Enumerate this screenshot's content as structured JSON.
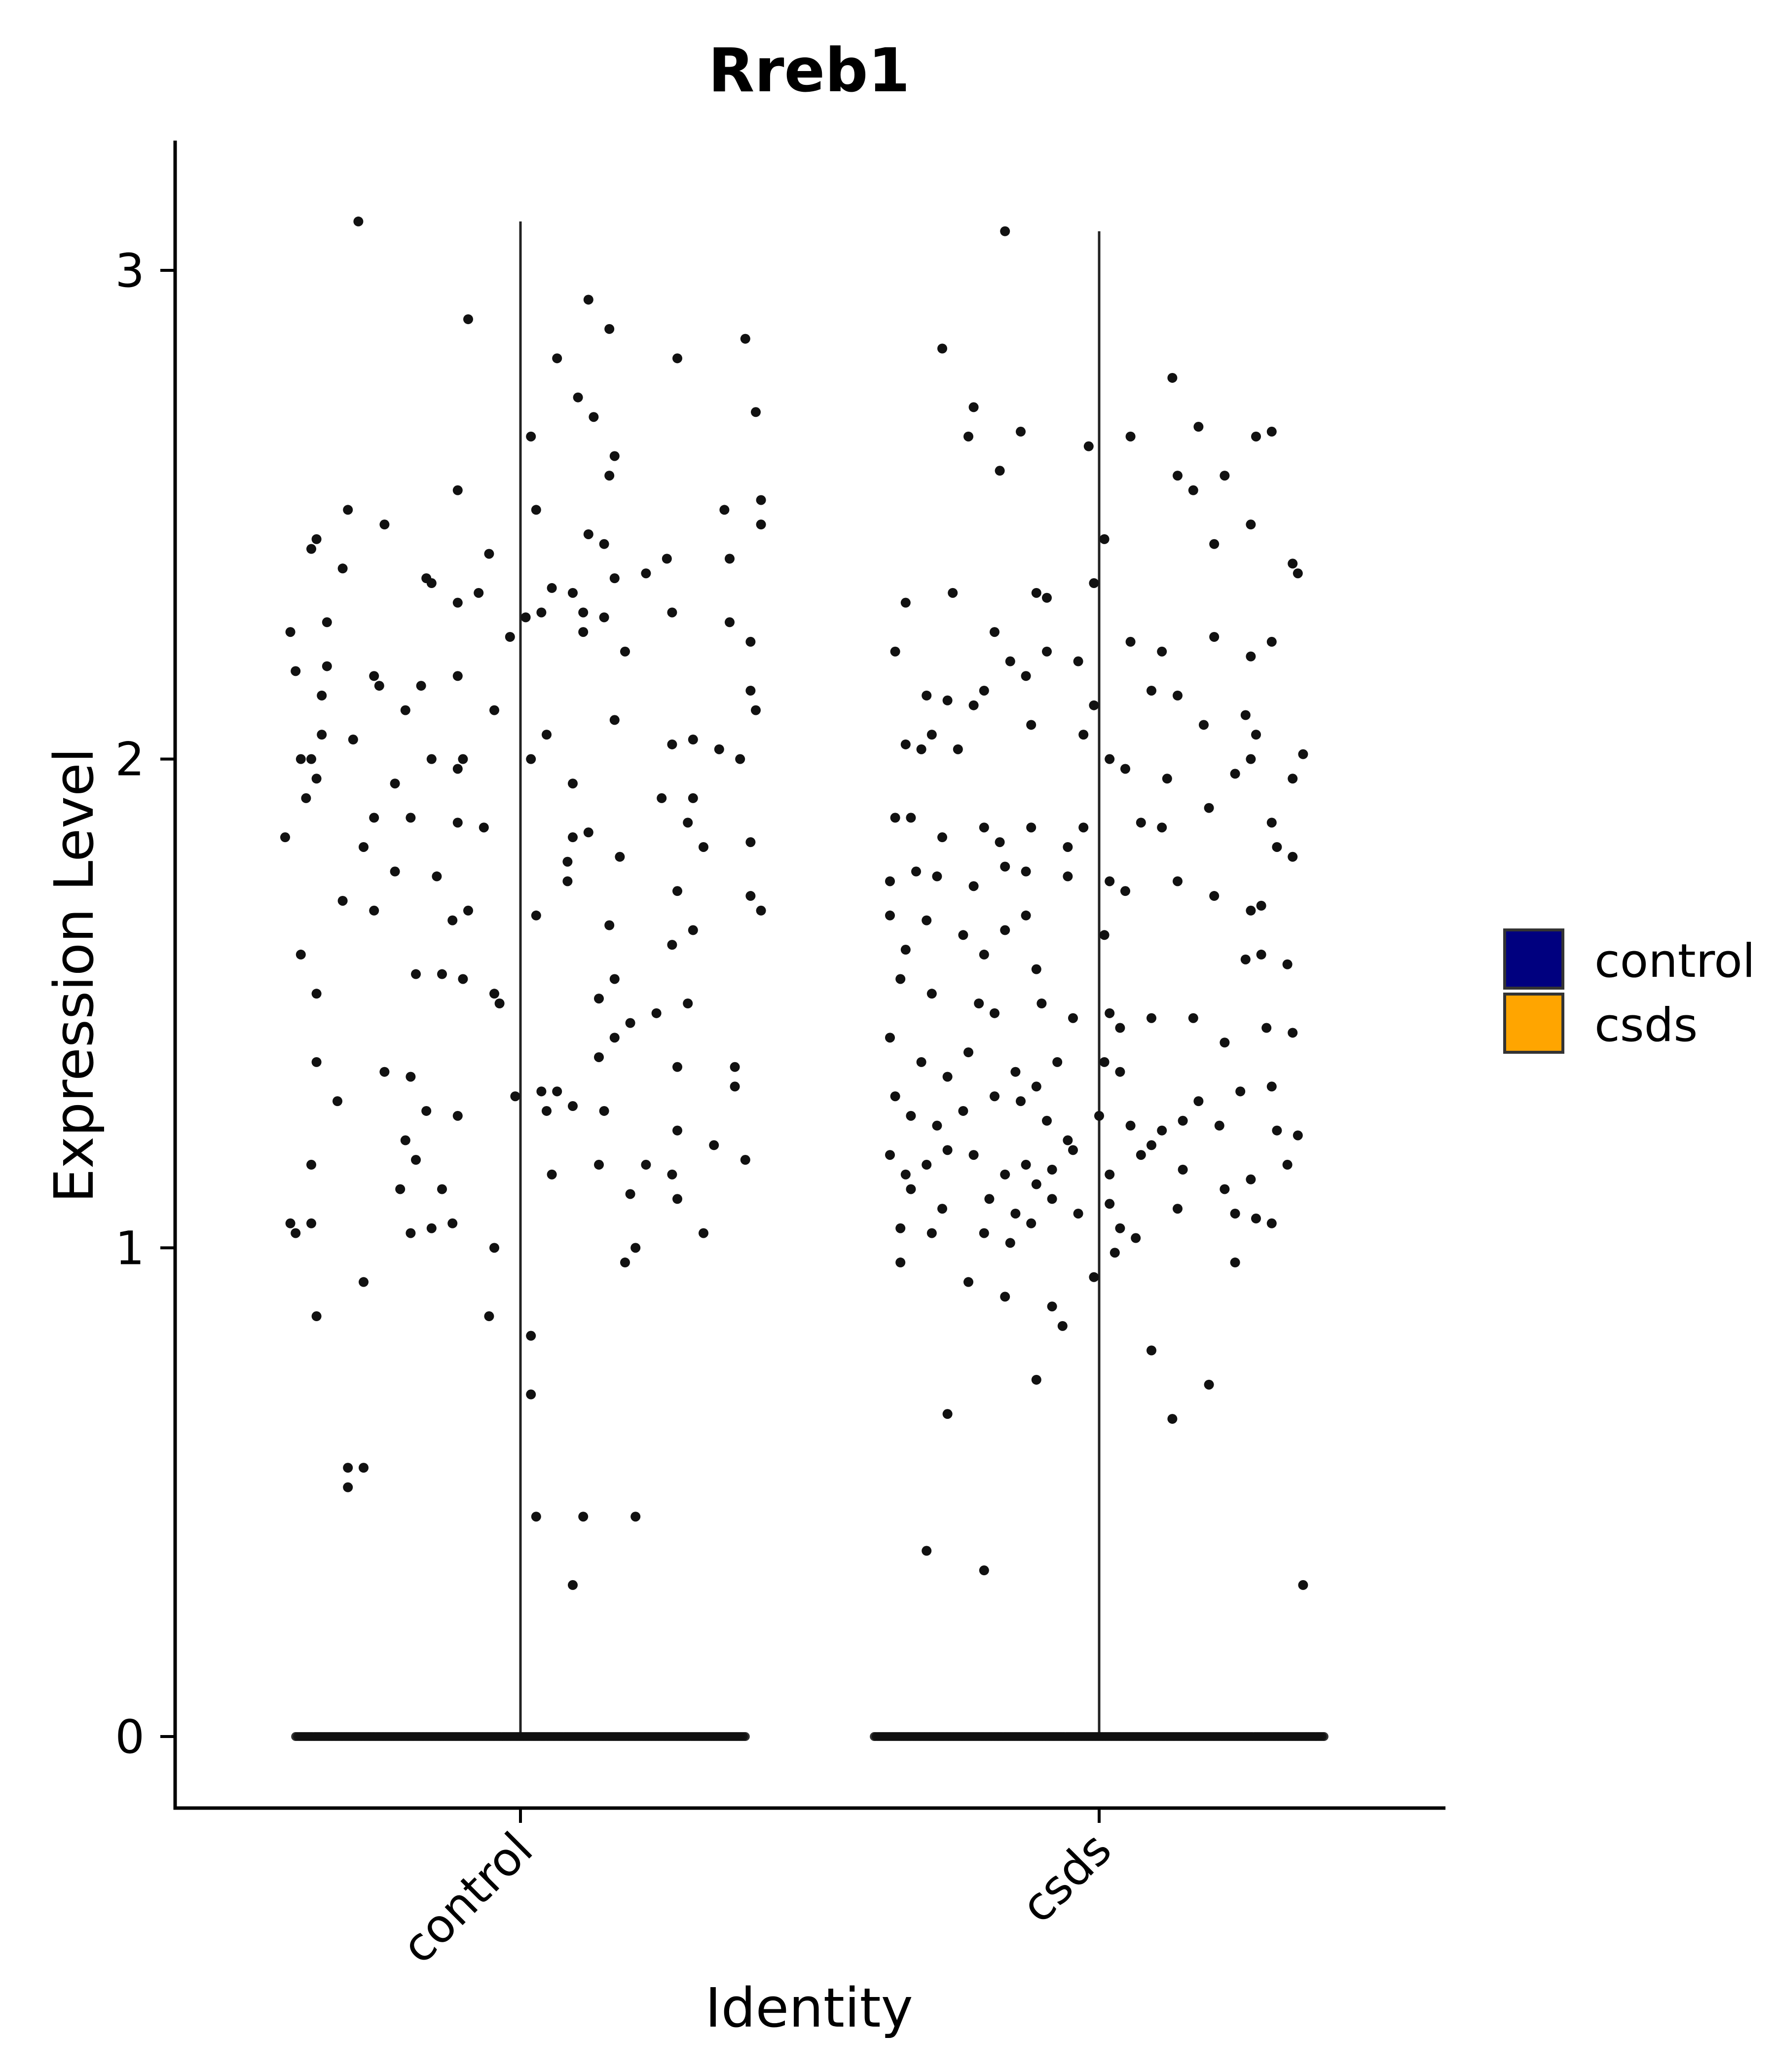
{
  "chart_data": {
    "type": "violin",
    "title": "Rreb1",
    "xlabel": "Identity",
    "ylabel": "Expression Level",
    "categories": [
      "control",
      "csds"
    ],
    "ylim": [
      -0.15,
      3.25
    ],
    "yticks": [
      0,
      1,
      2,
      3
    ],
    "legend": {
      "placement": "right",
      "entries": [
        {
          "label": "control",
          "color": "#00007F"
        },
        {
          "label": "csds",
          "color": "#FFA500"
        }
      ]
    },
    "violins": [
      {
        "category": "control",
        "max": 3.1,
        "zero_min": -0.3,
        "zero_max": 0.3
      },
      {
        "category": "csds",
        "max": 3.08,
        "zero_min": -0.3,
        "zero_max": 0.3
      }
    ],
    "points": {
      "control": [
        [
          -0.31,
          3.1
        ],
        [
          -0.1,
          2.9
        ],
        [
          0.13,
          2.94
        ],
        [
          0.17,
          2.88
        ],
        [
          0.43,
          2.86
        ],
        [
          0.3,
          2.82
        ],
        [
          0.07,
          2.82
        ],
        [
          0.11,
          2.74
        ],
        [
          0.14,
          2.7
        ],
        [
          0.45,
          2.71
        ],
        [
          0.02,
          2.66
        ],
        [
          0.18,
          2.62
        ],
        [
          0.17,
          2.58
        ],
        [
          -0.12,
          2.55
        ],
        [
          0.46,
          2.53
        ],
        [
          -0.33,
          2.51
        ],
        [
          0.39,
          2.51
        ],
        [
          0.03,
          2.51
        ],
        [
          0.46,
          2.48
        ],
        [
          -0.26,
          2.48
        ],
        [
          -0.39,
          2.45
        ],
        [
          0.13,
          2.46
        ],
        [
          0.16,
          2.44
        ],
        [
          -0.4,
          2.43
        ],
        [
          -0.06,
          2.42
        ],
        [
          0.28,
          2.41
        ],
        [
          0.4,
          2.41
        ],
        [
          -0.34,
          2.39
        ],
        [
          0.24,
          2.38
        ],
        [
          -0.18,
          2.37
        ],
        [
          0.18,
          2.37
        ],
        [
          0.06,
          2.35
        ],
        [
          -0.17,
          2.36
        ],
        [
          -0.08,
          2.34
        ],
        [
          0.1,
          2.34
        ],
        [
          -0.12,
          2.32
        ],
        [
          0.29,
          2.3
        ],
        [
          -0.37,
          2.28
        ],
        [
          0.01,
          2.29
        ],
        [
          0.04,
          2.3
        ],
        [
          0.12,
          2.3
        ],
        [
          0.16,
          2.29
        ],
        [
          0.4,
          2.28
        ],
        [
          -0.44,
          2.26
        ],
        [
          -0.02,
          2.25
        ],
        [
          0.44,
          2.24
        ],
        [
          0.2,
          2.22
        ],
        [
          0.12,
          2.26
        ],
        [
          -0.37,
          2.19
        ],
        [
          -0.43,
          2.18
        ],
        [
          -0.28,
          2.17
        ],
        [
          -0.38,
          2.13
        ],
        [
          -0.19,
          2.15
        ],
        [
          -0.12,
          2.17
        ],
        [
          0.44,
          2.14
        ],
        [
          -0.27,
          2.15
        ],
        [
          -0.22,
          2.1
        ],
        [
          -0.05,
          2.1
        ],
        [
          0.45,
          2.1
        ],
        [
          0.18,
          2.08
        ],
        [
          -0.38,
          2.05
        ],
        [
          -0.32,
          2.04
        ],
        [
          0.05,
          2.05
        ],
        [
          0.29,
          2.03
        ],
        [
          0.33,
          2.04
        ],
        [
          -0.42,
          2.0
        ],
        [
          -0.4,
          2.0
        ],
        [
          -0.39,
          1.96
        ],
        [
          -0.17,
          2.0
        ],
        [
          -0.12,
          1.98
        ],
        [
          -0.11,
          2.0
        ],
        [
          0.02,
          2.0
        ],
        [
          0.38,
          2.02
        ],
        [
          0.42,
          2.0
        ],
        [
          -0.24,
          1.95
        ],
        [
          0.1,
          1.95
        ],
        [
          0.27,
          1.92
        ],
        [
          0.33,
          1.92
        ],
        [
          -0.41,
          1.92
        ],
        [
          -0.28,
          1.88
        ],
        [
          -0.21,
          1.88
        ],
        [
          -0.12,
          1.87
        ],
        [
          -0.07,
          1.86
        ],
        [
          0.32,
          1.87
        ],
        [
          -0.45,
          1.84
        ],
        [
          -0.3,
          1.82
        ],
        [
          0.13,
          1.85
        ],
        [
          0.1,
          1.84
        ],
        [
          0.35,
          1.82
        ],
        [
          0.44,
          1.83
        ],
        [
          0.19,
          1.8
        ],
        [
          0.09,
          1.79
        ],
        [
          -0.24,
          1.77
        ],
        [
          -0.16,
          1.76
        ],
        [
          0.09,
          1.75
        ],
        [
          0.3,
          1.73
        ],
        [
          0.44,
          1.72
        ],
        [
          -0.34,
          1.71
        ],
        [
          -0.28,
          1.69
        ],
        [
          0.03,
          1.68
        ],
        [
          -0.1,
          1.69
        ],
        [
          -0.13,
          1.67
        ],
        [
          0.17,
          1.66
        ],
        [
          0.46,
          1.69
        ],
        [
          0.33,
          1.65
        ],
        [
          0.29,
          1.62
        ],
        [
          -0.42,
          1.6
        ],
        [
          -0.2,
          1.56
        ],
        [
          -0.15,
          1.56
        ],
        [
          -0.11,
          1.55
        ],
        [
          0.18,
          1.55
        ],
        [
          0.15,
          1.51
        ],
        [
          -0.39,
          1.52
        ],
        [
          -0.05,
          1.52
        ],
        [
          -0.04,
          1.5
        ],
        [
          0.32,
          1.5
        ],
        [
          0.26,
          1.48
        ],
        [
          0.21,
          1.46
        ],
        [
          0.18,
          1.43
        ],
        [
          0.15,
          1.39
        ],
        [
          -0.39,
          1.38
        ],
        [
          -0.26,
          1.36
        ],
        [
          0.41,
          1.37
        ],
        [
          0.3,
          1.37
        ],
        [
          -0.21,
          1.35
        ],
        [
          0.41,
          1.33
        ],
        [
          0.07,
          1.32
        ],
        [
          0.1,
          1.29
        ],
        [
          0.04,
          1.32
        ],
        [
          -0.01,
          1.31
        ],
        [
          -0.35,
          1.3
        ],
        [
          -0.22,
          1.22
        ],
        [
          -0.18,
          1.28
        ],
        [
          -0.12,
          1.27
        ],
        [
          0.16,
          1.28
        ],
        [
          0.05,
          1.28
        ],
        [
          0.3,
          1.24
        ],
        [
          0.37,
          1.21
        ],
        [
          -0.4,
          1.17
        ],
        [
          -0.2,
          1.18
        ],
        [
          0.43,
          1.18
        ],
        [
          0.24,
          1.17
        ],
        [
          0.15,
          1.17
        ],
        [
          0.29,
          1.15
        ],
        [
          0.06,
          1.15
        ],
        [
          -0.15,
          1.12
        ],
        [
          -0.23,
          1.12
        ],
        [
          0.21,
          1.11
        ],
        [
          0.3,
          1.1
        ],
        [
          -0.44,
          1.05
        ],
        [
          -0.43,
          1.03
        ],
        [
          -0.4,
          1.05
        ],
        [
          -0.13,
          1.05
        ],
        [
          -0.17,
          1.04
        ],
        [
          -0.21,
          1.03
        ],
        [
          0.35,
          1.03
        ],
        [
          0.22,
          1.0
        ],
        [
          0.2,
          0.97
        ],
        [
          -0.05,
          1.0
        ],
        [
          -0.3,
          0.93
        ],
        [
          0.02,
          0.82
        ],
        [
          -0.39,
          0.86
        ],
        [
          -0.06,
          0.86
        ],
        [
          0.02,
          0.7
        ],
        [
          -0.3,
          0.55
        ],
        [
          -0.33,
          0.55
        ],
        [
          -0.33,
          0.51
        ],
        [
          0.03,
          0.45
        ],
        [
          0.12,
          0.45
        ],
        [
          0.22,
          0.45
        ],
        [
          0.1,
          0.31
        ]
      ],
      "csds": [
        [
          -0.18,
          3.08
        ],
        [
          -0.3,
          2.84
        ],
        [
          -0.24,
          2.72
        ],
        [
          0.14,
          2.78
        ],
        [
          -0.25,
          2.66
        ],
        [
          -0.15,
          2.67
        ],
        [
          -0.02,
          2.64
        ],
        [
          0.06,
          2.66
        ],
        [
          0.19,
          2.68
        ],
        [
          0.3,
          2.66
        ],
        [
          0.33,
          2.67
        ],
        [
          -0.19,
          2.59
        ],
        [
          0.15,
          2.58
        ],
        [
          0.24,
          2.58
        ],
        [
          0.18,
          2.55
        ],
        [
          0.29,
          2.48
        ],
        [
          0.01,
          2.45
        ],
        [
          0.22,
          2.44
        ],
        [
          0.37,
          2.4
        ],
        [
          0.38,
          2.38
        ],
        [
          -0.37,
          2.32
        ],
        [
          -0.28,
          2.34
        ],
        [
          -0.12,
          2.34
        ],
        [
          -0.1,
          2.33
        ],
        [
          -0.01,
          2.36
        ],
        [
          -0.2,
          2.26
        ],
        [
          -0.17,
          2.2
        ],
        [
          -0.1,
          2.22
        ],
        [
          0.06,
          2.24
        ],
        [
          0.12,
          2.22
        ],
        [
          0.22,
          2.25
        ],
        [
          0.29,
          2.21
        ],
        [
          0.33,
          2.24
        ],
        [
          -0.39,
          2.22
        ],
        [
          -0.33,
          2.13
        ],
        [
          -0.29,
          2.12
        ],
        [
          -0.24,
          2.11
        ],
        [
          -0.22,
          2.14
        ],
        [
          -0.14,
          2.17
        ],
        [
          -0.04,
          2.2
        ],
        [
          -0.01,
          2.11
        ],
        [
          0.1,
          2.14
        ],
        [
          0.15,
          2.13
        ],
        [
          0.2,
          2.07
        ],
        [
          0.28,
          2.09
        ],
        [
          0.3,
          2.05
        ],
        [
          -0.37,
          2.03
        ],
        [
          -0.34,
          2.02
        ],
        [
          -0.32,
          2.05
        ],
        [
          -0.27,
          2.02
        ],
        [
          -0.13,
          2.07
        ],
        [
          -0.03,
          2.05
        ],
        [
          0.02,
          2.0
        ],
        [
          0.05,
          1.98
        ],
        [
          0.13,
          1.96
        ],
        [
          0.26,
          1.97
        ],
        [
          0.29,
          2.0
        ],
        [
          0.37,
          1.96
        ],
        [
          0.39,
          2.01
        ],
        [
          -0.39,
          1.88
        ],
        [
          -0.36,
          1.88
        ],
        [
          -0.3,
          1.84
        ],
        [
          -0.22,
          1.86
        ],
        [
          -0.19,
          1.83
        ],
        [
          -0.13,
          1.86
        ],
        [
          -0.06,
          1.82
        ],
        [
          -0.03,
          1.86
        ],
        [
          0.08,
          1.87
        ],
        [
          0.12,
          1.86
        ],
        [
          0.21,
          1.9
        ],
        [
          0.33,
          1.87
        ],
        [
          0.34,
          1.82
        ],
        [
          -0.4,
          1.75
        ],
        [
          -0.35,
          1.77
        ],
        [
          -0.31,
          1.76
        ],
        [
          -0.24,
          1.74
        ],
        [
          -0.18,
          1.78
        ],
        [
          -0.14,
          1.77
        ],
        [
          -0.06,
          1.76
        ],
        [
          0.02,
          1.75
        ],
        [
          0.05,
          1.73
        ],
        [
          0.15,
          1.75
        ],
        [
          0.22,
          1.72
        ],
        [
          0.29,
          1.69
        ],
        [
          0.31,
          1.7
        ],
        [
          0.37,
          1.8
        ],
        [
          -0.4,
          1.68
        ],
        [
          -0.37,
          1.61
        ],
        [
          -0.33,
          1.67
        ],
        [
          -0.26,
          1.64
        ],
        [
          -0.22,
          1.6
        ],
        [
          -0.18,
          1.65
        ],
        [
          -0.14,
          1.68
        ],
        [
          -0.12,
          1.57
        ],
        [
          0.01,
          1.64
        ],
        [
          0.28,
          1.59
        ],
        [
          0.31,
          1.6
        ],
        [
          0.36,
          1.58
        ],
        [
          -0.38,
          1.55
        ],
        [
          -0.32,
          1.52
        ],
        [
          -0.23,
          1.5
        ],
        [
          -0.2,
          1.48
        ],
        [
          -0.11,
          1.5
        ],
        [
          -0.05,
          1.47
        ],
        [
          0.02,
          1.48
        ],
        [
          0.04,
          1.45
        ],
        [
          0.1,
          1.47
        ],
        [
          0.18,
          1.47
        ],
        [
          0.24,
          1.42
        ],
        [
          0.32,
          1.45
        ],
        [
          0.37,
          1.44
        ],
        [
          -0.4,
          1.43
        ],
        [
          -0.34,
          1.38
        ],
        [
          -0.29,
          1.35
        ],
        [
          -0.25,
          1.4
        ],
        [
          -0.16,
          1.36
        ],
        [
          -0.12,
          1.33
        ],
        [
          -0.08,
          1.38
        ],
        [
          0.01,
          1.38
        ],
        [
          0.04,
          1.36
        ],
        [
          0.19,
          1.3
        ],
        [
          0.27,
          1.32
        ],
        [
          0.33,
          1.33
        ],
        [
          -0.39,
          1.31
        ],
        [
          -0.36,
          1.27
        ],
        [
          -0.31,
          1.25
        ],
        [
          -0.26,
          1.28
        ],
        [
          -0.2,
          1.31
        ],
        [
          -0.15,
          1.3
        ],
        [
          -0.1,
          1.26
        ],
        [
          -0.06,
          1.22
        ],
        [
          0.0,
          1.27
        ],
        [
          0.06,
          1.25
        ],
        [
          0.12,
          1.24
        ],
        [
          0.16,
          1.26
        ],
        [
          0.23,
          1.25
        ],
        [
          0.34,
          1.24
        ],
        [
          0.38,
          1.23
        ],
        [
          -0.4,
          1.19
        ],
        [
          -0.37,
          1.15
        ],
        [
          -0.33,
          1.17
        ],
        [
          -0.29,
          1.2
        ],
        [
          -0.24,
          1.19
        ],
        [
          -0.18,
          1.15
        ],
        [
          -0.14,
          1.17
        ],
        [
          -0.12,
          1.13
        ],
        [
          -0.09,
          1.16
        ],
        [
          -0.05,
          1.2
        ],
        [
          0.02,
          1.15
        ],
        [
          0.08,
          1.19
        ],
        [
          0.1,
          1.21
        ],
        [
          0.16,
          1.16
        ],
        [
          0.24,
          1.12
        ],
        [
          0.29,
          1.14
        ],
        [
          0.36,
          1.17
        ],
        [
          -0.36,
          1.12
        ],
        [
          -0.3,
          1.08
        ],
        [
          -0.21,
          1.1
        ],
        [
          -0.16,
          1.07
        ],
        [
          -0.13,
          1.05
        ],
        [
          -0.09,
          1.1
        ],
        [
          -0.04,
          1.07
        ],
        [
          0.02,
          1.09
        ],
        [
          0.04,
          1.04
        ],
        [
          0.07,
          1.02
        ],
        [
          0.15,
          1.08
        ],
        [
          0.26,
          1.07
        ],
        [
          0.3,
          1.06
        ],
        [
          -0.38,
          1.04
        ],
        [
          -0.32,
          1.03
        ],
        [
          -0.22,
          1.03
        ],
        [
          -0.17,
          1.01
        ],
        [
          0.03,
          0.99
        ],
        [
          0.26,
          0.97
        ],
        [
          0.33,
          1.05
        ],
        [
          -0.38,
          0.97
        ],
        [
          -0.25,
          0.93
        ],
        [
          -0.18,
          0.9
        ],
        [
          -0.09,
          0.88
        ],
        [
          -0.07,
          0.84
        ],
        [
          -0.01,
          0.94
        ],
        [
          0.1,
          0.79
        ],
        [
          -0.12,
          0.73
        ],
        [
          0.14,
          0.65
        ],
        [
          0.21,
          0.72
        ],
        [
          -0.29,
          0.66
        ],
        [
          -0.33,
          0.38
        ],
        [
          -0.22,
          0.34
        ],
        [
          0.39,
          0.31
        ]
      ]
    },
    "zero_points": {
      "control": {
        "count": 240,
        "x_min": -0.43,
        "x_max": 0.43
      },
      "csds": {
        "count": 240,
        "x_min": -0.43,
        "x_max": 0.43
      }
    }
  }
}
